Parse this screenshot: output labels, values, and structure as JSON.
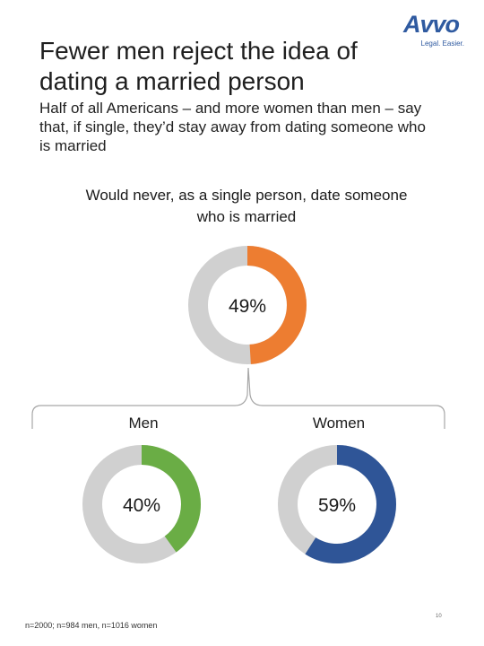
{
  "header": {
    "title": "Fewer men reject the idea of dating a married person",
    "subtitle": "Half of all Americans – and more women than men – say that, if single, they’d stay away from dating someone who is married"
  },
  "logo": {
    "word": "Avvo",
    "tagline": "Legal. Easier."
  },
  "chart_data": {
    "type": "pie",
    "title": "Would never, as a single person, date someone who is married",
    "charts": [
      {
        "label": "",
        "value": 49,
        "display": "49%",
        "color": "#ed7d31",
        "track_color": "#d0d0d0"
      },
      {
        "label": "Men",
        "value": 40,
        "display": "40%",
        "color": "#6aad45",
        "track_color": "#d0d0d0"
      },
      {
        "label": "Women",
        "value": 59,
        "display": "59%",
        "color": "#2f5597",
        "track_color": "#d0d0d0"
      }
    ]
  },
  "footnote": "n=2000; n=984 men, n=1016 women",
  "page_number": "10"
}
